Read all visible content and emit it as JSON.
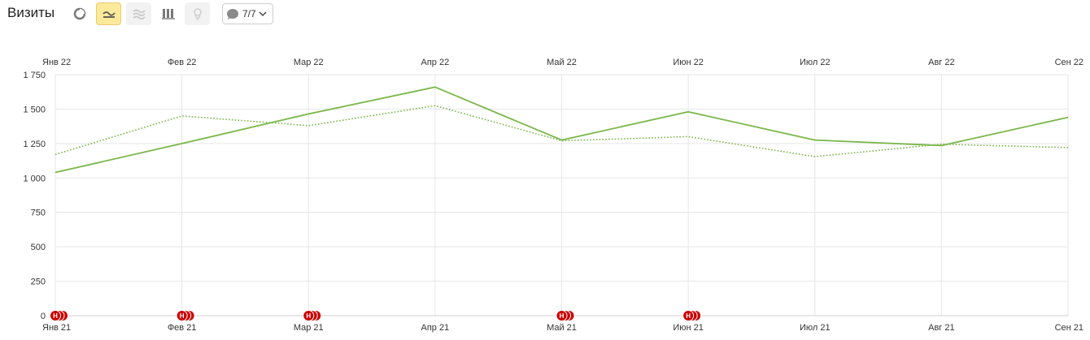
{
  "toolbar": {
    "title": "Визиты",
    "buttons": [
      {
        "name": "pie-chart-icon",
        "state": "normal"
      },
      {
        "name": "line-chart-icon",
        "state": "active"
      },
      {
        "name": "area-chart-icon",
        "state": "disabled"
      },
      {
        "name": "bar-chart-icon",
        "state": "normal"
      },
      {
        "name": "map-pin-icon",
        "state": "disabled"
      }
    ],
    "comments_label": "7/7",
    "comments_icon": "speech-bubble-icon",
    "dropdown_icon": "chevron-down-icon"
  },
  "colors": {
    "series": "#7ab648",
    "grid": "#e6e6e6",
    "marker": "#cc0000",
    "active_button": "#fde99a"
  },
  "chart_data": {
    "type": "line",
    "title": "",
    "xlabel": "",
    "ylabel": "",
    "ylim": [
      0,
      1750
    ],
    "yticks": [
      "0",
      "250",
      "500",
      "750",
      "1 000",
      "1 250",
      "1 500",
      "1 750"
    ],
    "ytick_values": [
      0,
      250,
      500,
      750,
      1000,
      1250,
      1500,
      1750
    ],
    "grid": true,
    "legend": "none",
    "x_top": [
      "Янв 22",
      "Фев 22",
      "Мар 22",
      "Апр 22",
      "Май 22",
      "Июн 22",
      "Июл 22",
      "Авг 22",
      "Сен 22"
    ],
    "x_bottom": [
      "Янв 21",
      "Фев 21",
      "Мар 21",
      "Апр 21",
      "Май 21",
      "Июн 21",
      "Июл 21",
      "Авг 21",
      "Сен 21"
    ],
    "series": [
      {
        "style": "solid",
        "values": [
          1040,
          1250,
          1465,
          1660,
          1275,
          1480,
          1275,
          1235,
          1440
        ]
      },
      {
        "style": "dotted",
        "values": [
          1170,
          1450,
          1380,
          1525,
          1270,
          1300,
          1155,
          1245,
          1220
        ]
      }
    ],
    "annotations": {
      "marker_label": "Н",
      "months": [
        "Янв 21",
        "Фев 21",
        "Мар 21",
        "Май 21",
        "Июн 21"
      ],
      "count_per_month": 3
    }
  }
}
